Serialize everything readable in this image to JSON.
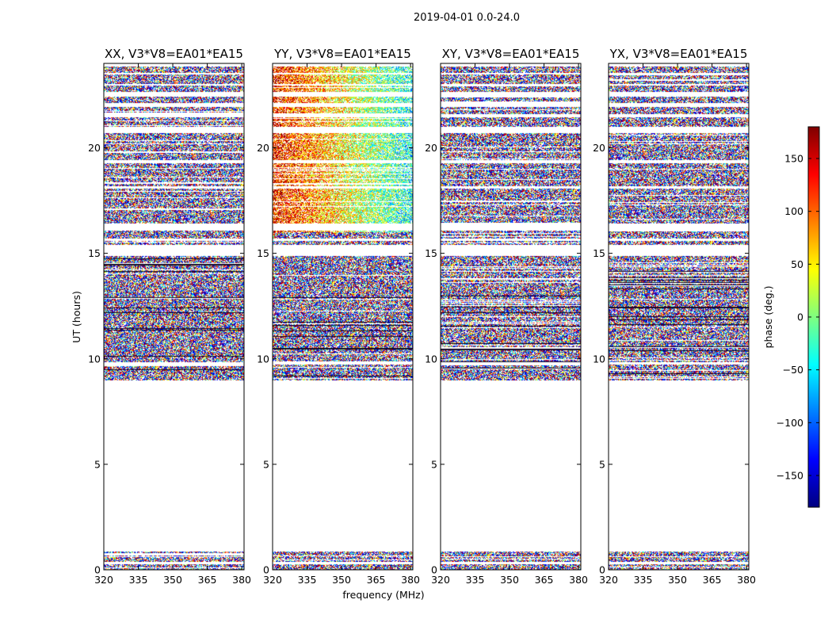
{
  "chart_data": {
    "type": "heatmap",
    "suptitle": "2019-04-01 0.0-24.0",
    "xlabel": "frequency (MHz)",
    "ylabel": "UT (hours)",
    "xlim": [
      320,
      381
    ],
    "ylim": [
      0,
      24
    ],
    "x_ticks": [
      320,
      335,
      350,
      365,
      380
    ],
    "y_ticks": [
      0,
      5,
      10,
      15,
      20
    ],
    "colorbar": {
      "label": "phase (deg.)",
      "range": [
        -180,
        180
      ],
      "ticks": [
        150,
        100,
        50,
        0,
        -50,
        -100,
        -150
      ],
      "tick_labels": [
        "150",
        "100",
        "50",
        "0",
        "−50",
        "−100",
        "−150"
      ],
      "colormap": [
        "#00007f",
        "#0000ff",
        "#007fff",
        "#00ffff",
        "#7fff7f",
        "#ffff00",
        "#ff7f00",
        "#ff0000",
        "#7f0000"
      ]
    },
    "panels": [
      {
        "title": "XX, V3*V8=EA01*EA15",
        "phase_trend": "random"
      },
      {
        "title": "YY, V3*V8=EA01*EA15",
        "phase_trend": "red-to-green gradient across frequency"
      },
      {
        "title": "XY, V3*V8=EA01*EA15",
        "phase_trend": "random"
      },
      {
        "title": "YX, V3*V8=EA01*EA15",
        "phase_trend": "random"
      }
    ],
    "data_time_ranges_hours": [
      [
        0.0,
        0.3
      ],
      [
        0.4,
        0.9
      ],
      [
        9.0,
        9.75
      ],
      [
        9.85,
        14.9
      ],
      [
        15.4,
        15.6
      ],
      [
        15.7,
        16.1
      ],
      [
        16.45,
        18.1
      ],
      [
        18.2,
        19.3
      ],
      [
        19.45,
        20.7
      ],
      [
        21.0,
        21.45
      ],
      [
        21.6,
        21.95
      ],
      [
        22.15,
        22.45
      ],
      [
        22.65,
        22.95
      ],
      [
        23.05,
        23.5
      ],
      [
        23.55,
        23.85
      ]
    ],
    "data_gaps_hours": [
      [
        0.3,
        0.4
      ],
      [
        0.9,
        9.0
      ],
      [
        14.9,
        15.4
      ],
      [
        16.1,
        16.45
      ],
      [
        20.7,
        21.0
      ]
    ]
  }
}
